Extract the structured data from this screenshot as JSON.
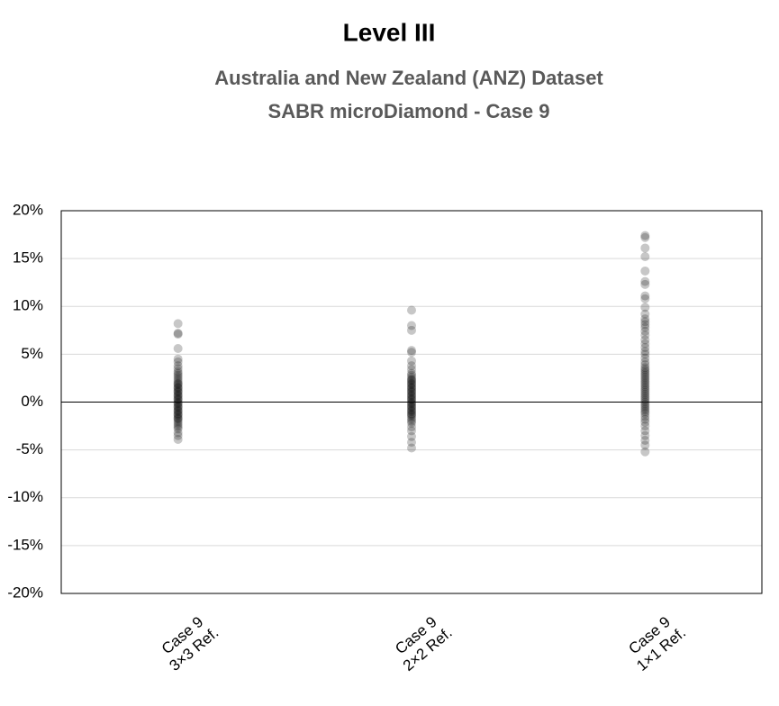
{
  "chart_data": {
    "type": "strip",
    "title": "Level III",
    "subtitle": [
      "Australia and New Zealand (ANZ) Dataset",
      "SABR microDiamond - Case 9"
    ],
    "categories": [
      [
        "Case 9",
        "3×3 Ref."
      ],
      [
        "Case 9",
        "2×2 Ref."
      ],
      [
        "Case 9",
        "1×1 Ref."
      ]
    ],
    "values": [
      [
        8.2,
        7.2,
        7.1,
        5.6,
        4.5,
        4.2,
        3.8,
        3.5,
        3.2,
        3.0,
        2.8,
        2.6,
        2.4,
        2.2,
        2.0,
        1.9,
        1.8,
        1.6,
        1.5,
        1.4,
        1.2,
        1.1,
        1.0,
        0.8,
        0.7,
        0.6,
        0.4,
        0.3,
        0.2,
        0.0,
        -0.1,
        -0.2,
        -0.4,
        -0.5,
        -0.6,
        -0.8,
        -0.9,
        -1.0,
        -1.2,
        -1.3,
        -1.4,
        -1.6,
        -1.7,
        -1.8,
        -2.0,
        -2.2,
        -2.4,
        -2.6,
        -2.8,
        -3.2,
        -3.5,
        -3.9
      ],
      [
        9.6,
        8.0,
        7.5,
        5.4,
        5.2,
        4.3,
        3.8,
        3.4,
        3.0,
        2.8,
        2.6,
        2.4,
        2.3,
        2.2,
        2.0,
        1.9,
        1.8,
        1.6,
        1.5,
        1.4,
        1.2,
        1.1,
        1.0,
        0.8,
        0.7,
        0.6,
        0.4,
        0.3,
        0.2,
        0.0,
        -0.1,
        -0.2,
        -0.4,
        -0.5,
        -0.6,
        -0.8,
        -0.9,
        -1.0,
        -1.2,
        -1.3,
        -1.4,
        -1.6,
        -1.8,
        -2.0,
        -2.2,
        -2.6,
        -3.0,
        -3.6,
        -4.2,
        -4.8
      ],
      [
        17.4,
        17.2,
        16.1,
        15.2,
        13.7,
        12.6,
        12.3,
        11.1,
        10.8,
        9.9,
        9.2,
        8.7,
        8.4,
        8.1,
        7.8,
        7.4,
        7.0,
        6.5,
        6.1,
        5.7,
        5.3,
        5.0,
        4.6,
        4.2,
        3.9,
        3.6,
        3.4,
        3.2,
        3.0,
        2.8,
        2.6,
        2.4,
        2.2,
        2.0,
        1.8,
        1.6,
        1.4,
        1.2,
        1.0,
        0.8,
        0.6,
        0.4,
        0.2,
        0.0,
        -0.2,
        -0.4,
        -0.6,
        -0.8,
        -1.0,
        -1.2,
        -1.5,
        -1.8,
        -2.1,
        -2.5,
        -3.0,
        -3.5,
        -4.0,
        -4.5,
        -5.2
      ]
    ],
    "color": "#000000",
    "opacity": 0.22,
    "ylim": [
      -20,
      20
    ],
    "yticks": [
      {
        "value": -20,
        "label": "-20%"
      },
      {
        "value": -15,
        "label": "-15%"
      },
      {
        "value": -10,
        "label": "-10%"
      },
      {
        "value": -5,
        "label": "-5%"
      },
      {
        "value": 0,
        "label": "0%"
      },
      {
        "value": 5,
        "label": "5%"
      },
      {
        "value": 10,
        "label": "10%"
      },
      {
        "value": 15,
        "label": "15%"
      },
      {
        "value": 20,
        "label": "20%"
      }
    ],
    "grid": true
  }
}
